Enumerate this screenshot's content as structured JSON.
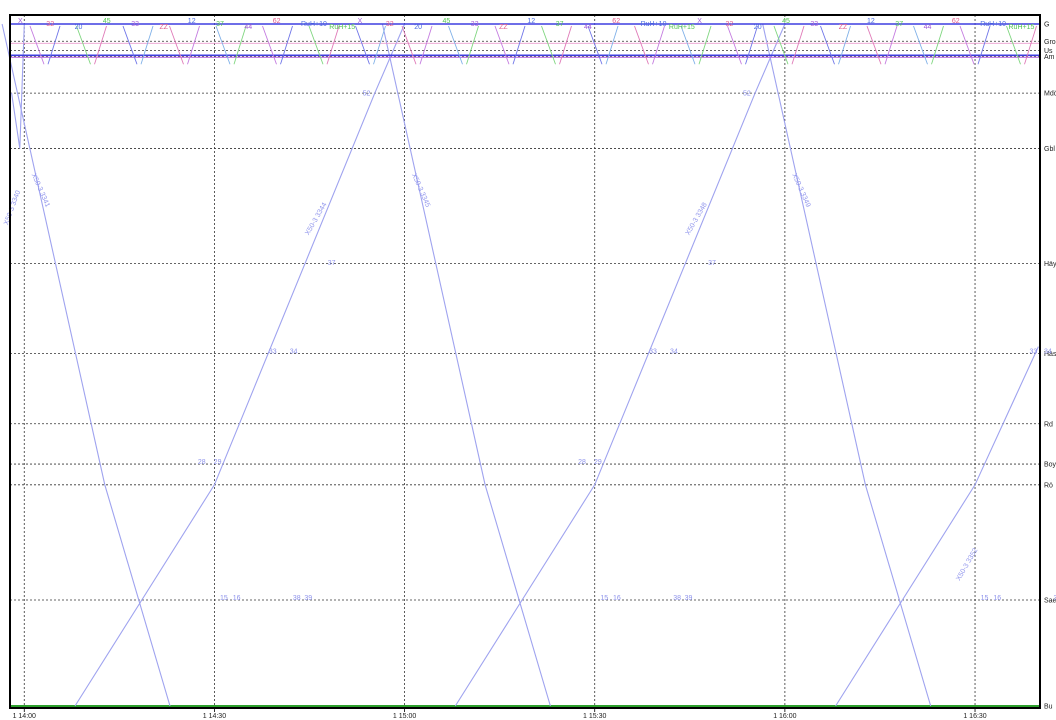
{
  "chart_data": {
    "type": "line",
    "x_axis": {
      "unit": "time",
      "range": [
        "13:57:45",
        "16:40:15"
      ],
      "ticks": [
        "1 14:00",
        "1 14:30",
        "1 15:00",
        "1 15:30",
        "1 16:00",
        "1 16:30"
      ],
      "tick_minutes": [
        840,
        870,
        900,
        930,
        960,
        990
      ]
    },
    "grid": true,
    "stations": [
      {
        "label": "G",
        "km": 0.0
      },
      {
        "label": "Gro",
        "km": 1.5
      },
      {
        "label": "Us",
        "km": 2.3
      },
      {
        "label": "Am",
        "km": 2.8
      },
      {
        "label": "Mdö",
        "km": 6.0
      },
      {
        "label": "Gbl",
        "km": 10.8
      },
      {
        "label": "Häy",
        "km": 20.8
      },
      {
        "label": "Häs",
        "km": 28.6
      },
      {
        "label": "Rd",
        "km": 34.7
      },
      {
        "label": "Boy",
        "km": 38.2
      },
      {
        "label": "Rö",
        "km": 40.0
      },
      {
        "label": "Sae",
        "km": 50.0
      },
      {
        "label": "Bu",
        "km": 59.2
      }
    ],
    "series": [
      {
        "name": "X50-3 3341",
        "color": "#9fa3ef",
        "points": [
          [
            836.5,
            0.0
          ],
          [
            852.7,
            40.0
          ],
          [
            863.0,
            59.2
          ]
        ]
      },
      {
        "name": "X50-3 3344",
        "color": "#9fa3ef",
        "points": [
          [
            848.0,
            59.2
          ],
          [
            870.0,
            40.0
          ],
          [
            895.3,
            6.0
          ],
          [
            900.0,
            0.0
          ]
        ]
      },
      {
        "name": "X50-3 3345",
        "color": "#9fa3ef",
        "points": [
          [
            896.5,
            0.0
          ],
          [
            912.7,
            40.0
          ],
          [
            923.0,
            59.2
          ]
        ]
      },
      {
        "name": "X50-3 3348",
        "color": "#9fa3ef",
        "points": [
          [
            908.0,
            59.2
          ],
          [
            930.0,
            40.0
          ],
          [
            955.3,
            6.0
          ],
          [
            960.0,
            0.0
          ]
        ]
      },
      {
        "name": "X50-3 3349",
        "color": "#9fa3ef",
        "points": [
          [
            956.5,
            0.0
          ],
          [
            972.7,
            40.0
          ],
          [
            983.0,
            59.2
          ]
        ]
      },
      {
        "name": "X50-3 3352",
        "color": "#9fa3ef",
        "points": [
          [
            968.0,
            59.2
          ],
          [
            990.0,
            40.0
          ],
          [
            1000.0,
            28.0
          ]
        ]
      },
      {
        "name": "X50-3 3340",
        "color": "#9fa3ef",
        "points": [
          [
            838.0,
            6.0
          ],
          [
            839.3,
            10.8
          ],
          [
            840.0,
            0.0
          ]
        ]
      }
    ],
    "train_labels": [
      {
        "text": "X50-3 3341",
        "t": 842.3,
        "km": 14.5,
        "angle": 66
      },
      {
        "text": "X50-3 3344",
        "t": 886.3,
        "km": 17.0,
        "angle": -60
      },
      {
        "text": "X50-3 3345",
        "t": 902.3,
        "km": 14.5,
        "angle": 66
      },
      {
        "text": "X50-3 3348",
        "t": 946.3,
        "km": 17.0,
        "angle": -60
      },
      {
        "text": "X50-3 3349",
        "t": 962.3,
        "km": 14.5,
        "angle": 66
      },
      {
        "text": "X50-3 3352",
        "t": 989.0,
        "km": 47.0,
        "angle": -60
      },
      {
        "text": "X50-3 3340",
        "t": 838.4,
        "km": 16.0,
        "angle": -70
      }
    ],
    "stop_marks": [
      {
        "text": "37",
        "t": 888.5,
        "km": 20.9
      },
      {
        "text": "52",
        "t": 894.0,
        "km": 6.2
      },
      {
        "text": "15",
        "t": 871.5,
        "km": 50.0
      },
      {
        "text": "16",
        "t": 873.5,
        "km": 50.0
      },
      {
        "text": "28",
        "t": 868.0,
        "km": 38.2
      },
      {
        "text": "29",
        "t": 870.5,
        "km": 38.2
      },
      {
        "text": "33",
        "t": 879.2,
        "km": 28.6
      },
      {
        "text": "34",
        "t": 882.5,
        "km": 28.6
      },
      {
        "text": "38",
        "t": 883.0,
        "km": 50.0
      },
      {
        "text": "39",
        "t": 884.8,
        "km": 50.0
      },
      {
        "text": "37",
        "t": 948.5,
        "km": 20.9
      },
      {
        "text": "52",
        "t": 954.0,
        "km": 6.2
      },
      {
        "text": "15",
        "t": 931.5,
        "km": 50.0
      },
      {
        "text": "16",
        "t": 933.5,
        "km": 50.0
      },
      {
        "text": "28",
        "t": 928.0,
        "km": 38.2
      },
      {
        "text": "29",
        "t": 930.5,
        "km": 38.2
      },
      {
        "text": "33",
        "t": 939.2,
        "km": 28.6
      },
      {
        "text": "34",
        "t": 942.5,
        "km": 28.6
      },
      {
        "text": "38",
        "t": 943.0,
        "km": 50.0
      },
      {
        "text": "39",
        "t": 944.8,
        "km": 50.0
      },
      {
        "text": "15",
        "t": 991.5,
        "km": 50.0
      },
      {
        "text": "16",
        "t": 993.5,
        "km": 50.0
      },
      {
        "text": "33",
        "t": 999.2,
        "km": 28.6
      },
      {
        "text": "34",
        "t": 1001.5,
        "km": 28.6
      },
      {
        "text": "38",
        "t": 1003.0,
        "km": 50.0
      },
      {
        "text": "39",
        "t": 1004.8,
        "km": 50.0
      }
    ],
    "top_cluster_labels": [
      "X",
      "32",
      "20",
      "45",
      "33",
      "ZZ",
      "12",
      "37",
      "44",
      "62",
      "RuH+10",
      "RuH+15"
    ]
  }
}
